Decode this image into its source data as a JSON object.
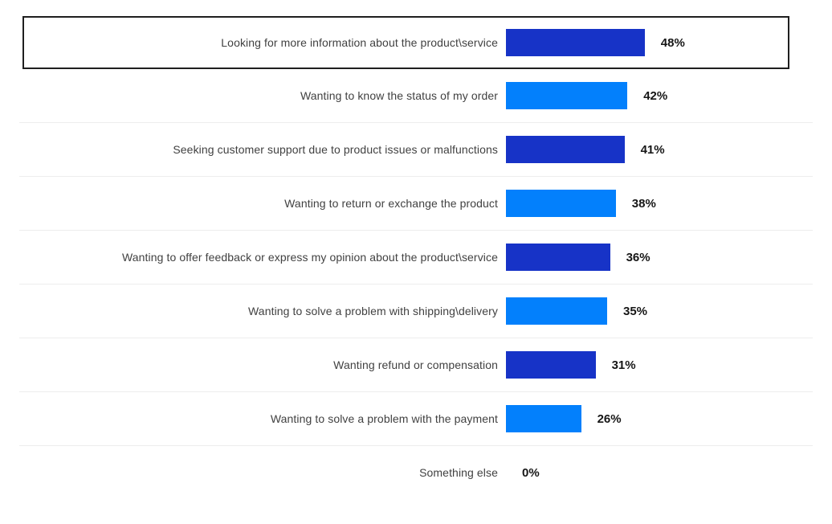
{
  "chart_data": {
    "type": "bar",
    "orientation": "horizontal",
    "title": "",
    "xlabel": "",
    "ylabel": "",
    "unit": "%",
    "xlim": [
      0,
      100
    ],
    "gridlines": false,
    "legend": false,
    "highlighted_category": "Looking for more information about the product\\service",
    "categories": [
      "Looking for more information about the product\\service",
      "Wanting to know the status of my order",
      "Seeking customer support due to product issues or malfunctions",
      "Wanting to return or exchange the product",
      "Wanting to offer feedback or express my opinion about the product\\service",
      "Wanting to solve a problem with shipping\\delivery",
      "Wanting refund or compensation",
      "Wanting to solve a problem with the payment",
      "Something else"
    ],
    "values": [
      48,
      42,
      41,
      38,
      36,
      35,
      31,
      26,
      0
    ],
    "rows": [
      {
        "label": "Looking for more information about the product\\service",
        "value": 48,
        "value_label": "48%",
        "color": "#1733c7",
        "highlighted": true
      },
      {
        "label": "Wanting to know the status of my order",
        "value": 42,
        "value_label": "42%",
        "color": "#0380fc",
        "highlighted": false
      },
      {
        "label": "Seeking customer support due to product issues or malfunctions",
        "value": 41,
        "value_label": "41%",
        "color": "#1733c7",
        "highlighted": false
      },
      {
        "label": "Wanting to return or exchange the product",
        "value": 38,
        "value_label": "38%",
        "color": "#0380fc",
        "highlighted": false
      },
      {
        "label": "Wanting to offer feedback or express my opinion about the product\\service",
        "value": 36,
        "value_label": "36%",
        "color": "#1733c7",
        "highlighted": false
      },
      {
        "label": "Wanting to solve a problem with shipping\\delivery",
        "value": 35,
        "value_label": "35%",
        "color": "#0380fc",
        "highlighted": false
      },
      {
        "label": "Wanting refund or compensation",
        "value": 31,
        "value_label": "31%",
        "color": "#1733c7",
        "highlighted": false
      },
      {
        "label": "Wanting to solve a problem with the payment",
        "value": 26,
        "value_label": "26%",
        "color": "#0380fc",
        "highlighted": false
      },
      {
        "label": "Something else",
        "value": 0,
        "value_label": "0%",
        "color": "#ffffff",
        "highlighted": false
      }
    ],
    "colors": {
      "dark_bar": "#1733c7",
      "light_bar": "#0380fc",
      "highlight_border": "#1f1f1f",
      "divider": "#ededed",
      "label_text": "#414141",
      "value_text": "#161616",
      "background": "#ffffff"
    }
  }
}
